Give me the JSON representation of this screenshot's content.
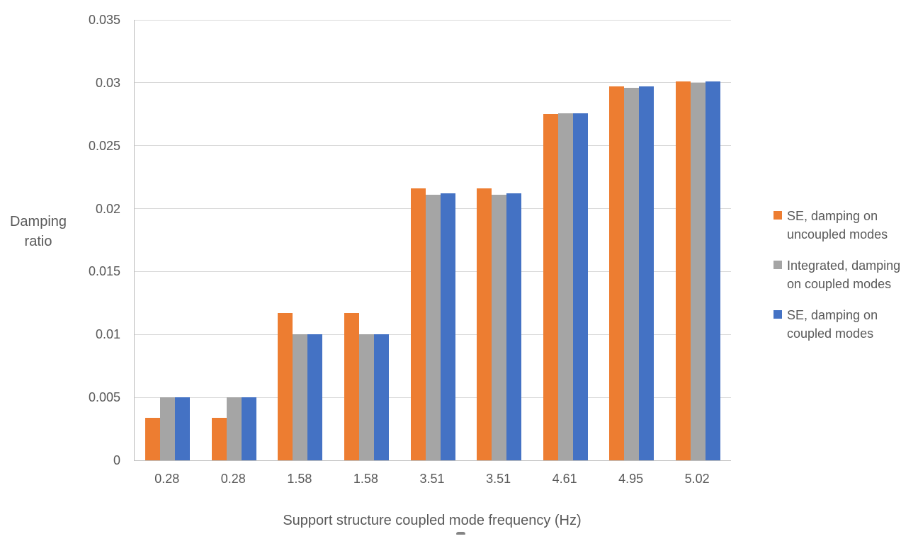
{
  "chart_data": {
    "type": "bar",
    "title": "",
    "xlabel": "Support structure coupled mode frequency (Hz)",
    "ylabel": "Damping ratio",
    "categories": [
      "0.28",
      "0.28",
      "1.58",
      "1.58",
      "3.51",
      "3.51",
      "4.61",
      "4.95",
      "5.02"
    ],
    "series": [
      {
        "name": "SE, damping on uncoupled modes",
        "legend_lines": [
          "SE, damping on",
          "uncoupled modes"
        ],
        "color": "#ED7D31",
        "values": [
          0.0034,
          0.0034,
          0.0117,
          0.0117,
          0.0216,
          0.0216,
          0.0275,
          0.0297,
          0.0301
        ]
      },
      {
        "name": "Integrated, damping on coupled modes",
        "legend_lines": [
          "Integrated, damping",
          "on coupled modes"
        ],
        "color": "#A5A5A5",
        "values": [
          0.005,
          0.005,
          0.01,
          0.01,
          0.0211,
          0.0211,
          0.0276,
          0.0296,
          0.03
        ]
      },
      {
        "name": "SE, damping on coupled modes",
        "legend_lines": [
          "SE, damping on",
          "coupled modes"
        ],
        "color": "#4472C4",
        "values": [
          0.005,
          0.005,
          0.01,
          0.01,
          0.0212,
          0.0212,
          0.0276,
          0.0297,
          0.0301
        ]
      }
    ],
    "ylim": [
      0,
      0.035
    ],
    "ytick_step": 0.005,
    "ytick_labels": [
      "0",
      "0.005",
      "0.01",
      "0.015",
      "0.02",
      "0.025",
      "0.03",
      "0.035"
    ],
    "grid": true,
    "legend_position": "right"
  },
  "colors": {
    "gridline": "#D9D9D9",
    "axis_line": "#BFBFBF",
    "text": "#595959",
    "background": "#FFFFFF"
  }
}
